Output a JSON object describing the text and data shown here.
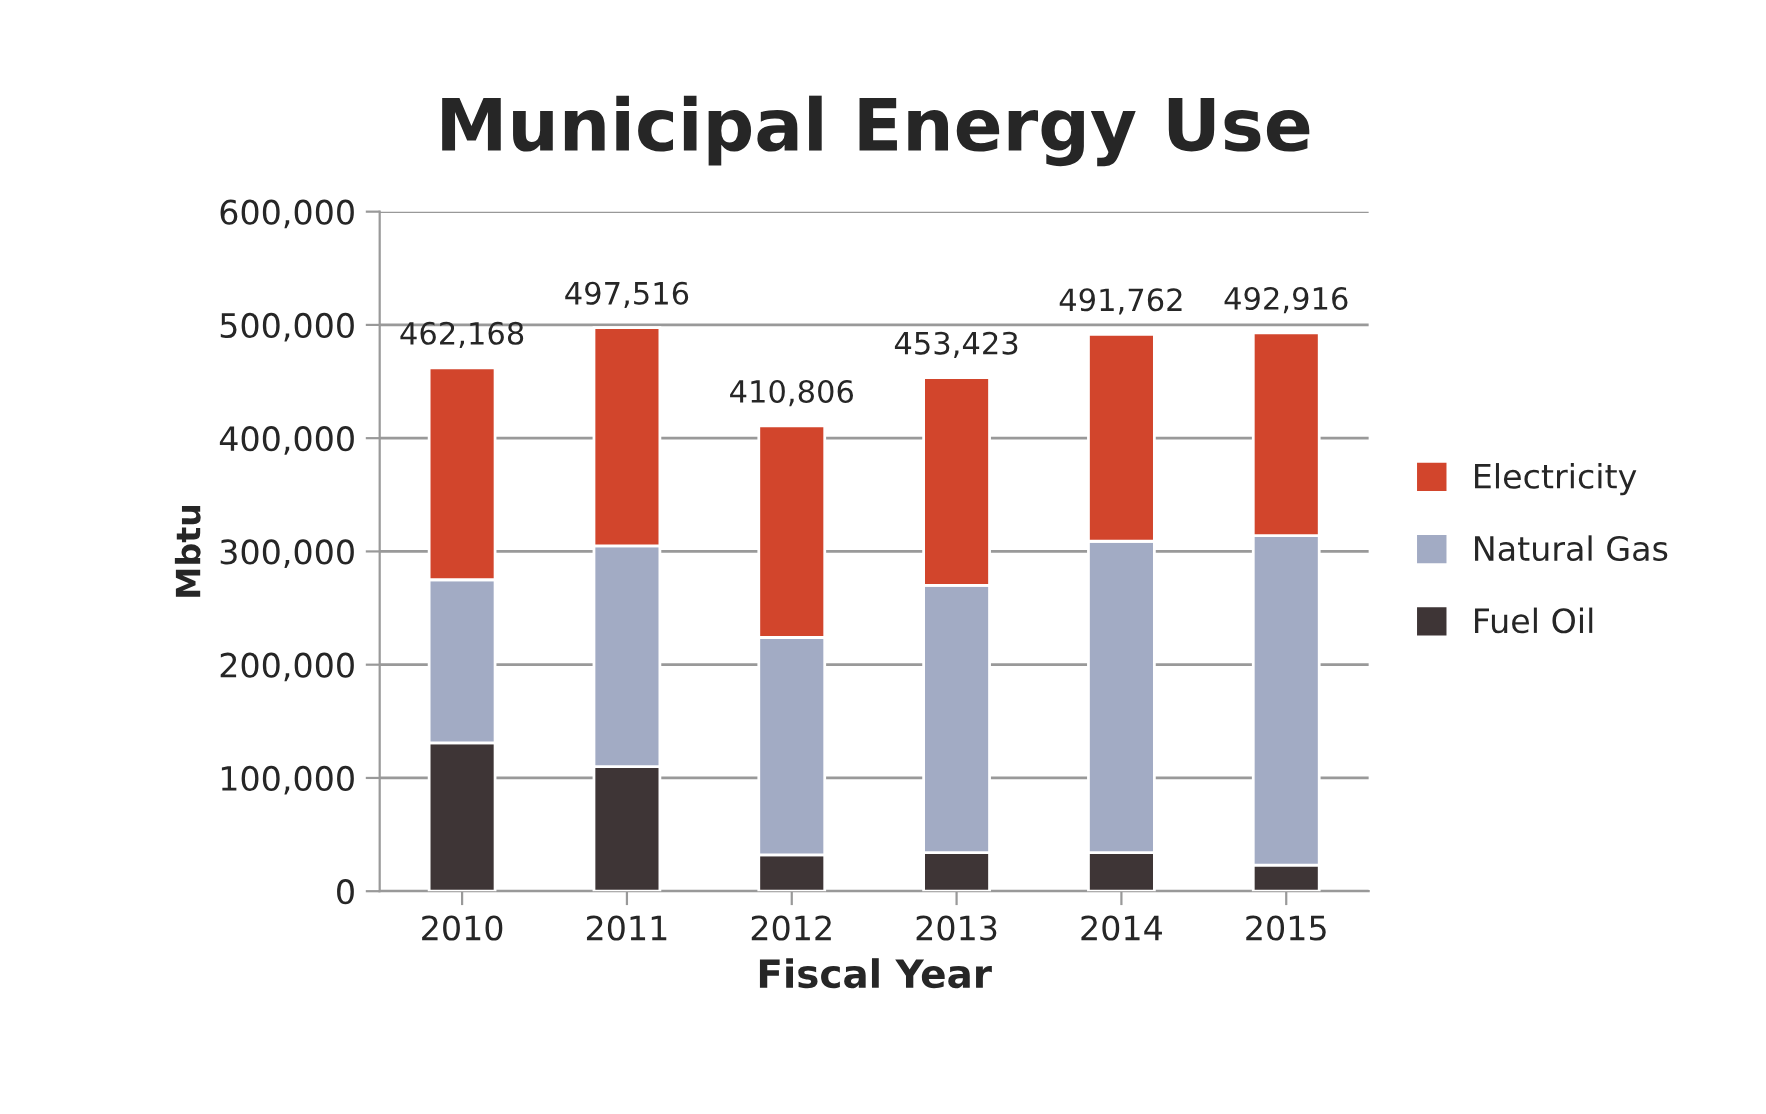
{
  "chart_data": {
    "type": "bar",
    "title": "Municipal Energy Use",
    "xlabel": "Fiscal Year",
    "ylabel": "Mbtu",
    "categories": [
      "2010",
      "2011",
      "2012",
      "2013",
      "2014",
      "2015"
    ],
    "stacked": true,
    "series": [
      {
        "name": "Fuel Oil",
        "color": "#3e3536",
        "values": [
          131000,
          110000,
          32000,
          34000,
          34000,
          23000
        ]
      },
      {
        "name": "Natural Gas",
        "color": "#a2abc4",
        "values": [
          144000,
          195000,
          192000,
          236000,
          275000,
          291000
        ]
      },
      {
        "name": "Electricity",
        "color": "#d2452c",
        "values": [
          187168,
          192516,
          186806,
          183423,
          182762,
          178916
        ]
      }
    ],
    "totals": [
      "462,168",
      "497,516",
      "410,806",
      "453,423",
      "491,762",
      "492,916"
    ],
    "ylim": [
      0,
      600000
    ],
    "yticks": [
      {
        "value": 0,
        "label": "0"
      },
      {
        "value": 100000,
        "label": "100,000"
      },
      {
        "value": 200000,
        "label": "200,000"
      },
      {
        "value": 300000,
        "label": "300,000"
      },
      {
        "value": 400000,
        "label": "400,000"
      },
      {
        "value": 500000,
        "label": "500,000"
      },
      {
        "value": 600000,
        "label": "600,000"
      }
    ],
    "grid": "y",
    "legend": "right"
  }
}
